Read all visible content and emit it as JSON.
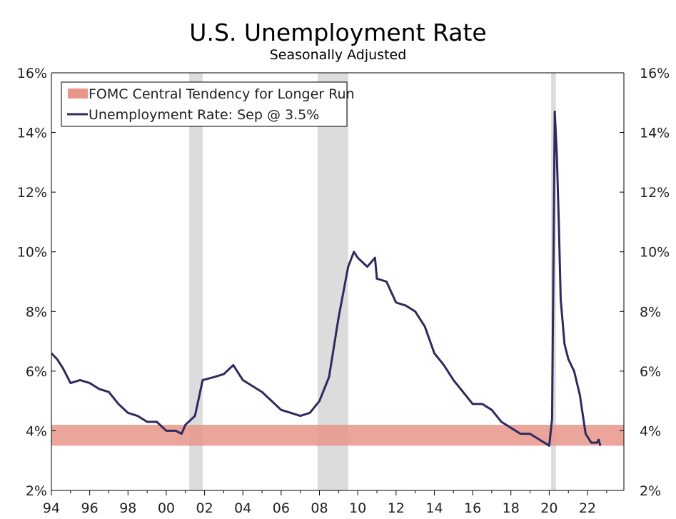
{
  "chart_data": {
    "type": "line",
    "title": "U.S. Unemployment Rate",
    "subtitle": "Seasonally Adjusted",
    "xlabel": "",
    "ylabel": "",
    "xlim": [
      1994,
      2023.9
    ],
    "ylim": [
      2,
      16
    ],
    "y_ticks": [
      2,
      4,
      6,
      8,
      10,
      12,
      14,
      16
    ],
    "y_tick_labels": [
      "2%",
      "4%",
      "6%",
      "8%",
      "10%",
      "12%",
      "14%",
      "16%"
    ],
    "x_ticks": [
      1994,
      1996,
      1998,
      2000,
      2002,
      2004,
      2006,
      2008,
      2010,
      2012,
      2014,
      2016,
      2018,
      2020,
      2022
    ],
    "x_tick_labels": [
      "94",
      "96",
      "98",
      "00",
      "02",
      "04",
      "06",
      "08",
      "10",
      "12",
      "14",
      "16",
      "18",
      "20",
      "22"
    ],
    "legend": {
      "placement": "top-left",
      "entries": [
        "FOMC Central Tendency for Longer Run",
        "Unemployment Rate: Sep @ 3.5%"
      ]
    },
    "band": {
      "name": "FOMC Central Tendency for Longer Run",
      "low": 3.5,
      "high": 4.2,
      "color": "#e8958a"
    },
    "recessions": [
      [
        2001.2,
        2001.9
      ],
      [
        2007.9,
        2009.5
      ],
      [
        2020.1,
        2020.35
      ]
    ],
    "series": [
      {
        "name": "Unemployment Rate",
        "color": "#2e2a5e",
        "x": [
          1994.0,
          1994.3,
          1994.6,
          1995.0,
          1995.5,
          1996.0,
          1996.5,
          1997.0,
          1997.5,
          1998.0,
          1998.5,
          1999.0,
          1999.5,
          2000.0,
          2000.5,
          2000.8,
          2001.0,
          2001.5,
          2001.9,
          2002.5,
          2003.0,
          2003.5,
          2004.0,
          2004.5,
          2005.0,
          2005.5,
          2006.0,
          2006.5,
          2007.0,
          2007.5,
          2008.0,
          2008.5,
          2009.0,
          2009.5,
          2009.8,
          2010.0,
          2010.5,
          2010.9,
          2011.0,
          2011.5,
          2012.0,
          2012.5,
          2013.0,
          2013.5,
          2014.0,
          2014.5,
          2015.0,
          2015.5,
          2016.0,
          2016.5,
          2017.0,
          2017.5,
          2018.0,
          2018.5,
          2019.0,
          2019.5,
          2020.0,
          2020.15,
          2020.29,
          2020.4,
          2020.5,
          2020.6,
          2020.8,
          2021.0,
          2021.3,
          2021.6,
          2021.9,
          2022.2,
          2022.5,
          2022.58,
          2022.67
        ],
        "values": [
          6.6,
          6.4,
          6.1,
          5.6,
          5.7,
          5.6,
          5.4,
          5.3,
          4.9,
          4.6,
          4.5,
          4.3,
          4.3,
          4.0,
          4.0,
          3.9,
          4.2,
          4.5,
          5.7,
          5.8,
          5.9,
          6.2,
          5.7,
          5.5,
          5.3,
          5.0,
          4.7,
          4.6,
          4.5,
          4.6,
          5.0,
          5.8,
          7.8,
          9.5,
          10.0,
          9.8,
          9.5,
          9.8,
          9.1,
          9.0,
          8.3,
          8.2,
          8.0,
          7.5,
          6.6,
          6.2,
          5.7,
          5.3,
          4.9,
          4.9,
          4.7,
          4.3,
          4.1,
          3.9,
          3.9,
          3.7,
          3.5,
          4.4,
          14.7,
          13.2,
          11.0,
          8.4,
          6.9,
          6.4,
          6.0,
          5.2,
          3.9,
          3.6,
          3.6,
          3.7,
          3.5
        ]
      }
    ]
  }
}
